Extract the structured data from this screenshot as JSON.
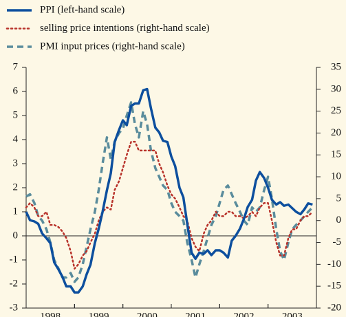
{
  "chart_data": {
    "type": "line",
    "x": [
      1998,
      1998.08,
      1998.17,
      1998.25,
      1998.33,
      1998.42,
      1998.5,
      1998.58,
      1998.67,
      1998.75,
      1998.83,
      1998.92,
      1999,
      1999.08,
      1999.17,
      1999.25,
      1999.33,
      1999.42,
      1999.5,
      1999.58,
      1999.67,
      1999.75,
      1999.83,
      1999.92,
      2000,
      2000.08,
      2000.17,
      2000.25,
      2000.33,
      2000.42,
      2000.5,
      2000.58,
      2000.67,
      2000.75,
      2000.83,
      2000.92,
      2001,
      2001.08,
      2001.17,
      2001.25,
      2001.33,
      2001.42,
      2001.5,
      2001.58,
      2001.67,
      2001.75,
      2001.83,
      2001.92,
      2002,
      2002.08,
      2002.17,
      2002.25,
      2002.33,
      2002.42,
      2002.5,
      2002.58,
      2002.67,
      2002.75,
      2002.83,
      2002.92,
      2003,
      2003.08,
      2003.17,
      2003.25,
      2003.33,
      2003.42,
      2003.5,
      2003.58,
      2003.67,
      2003.75,
      2003.83,
      2003.92
    ],
    "xlim": [
      1998,
      2004
    ],
    "xticks": [
      {
        "value": 1998.5,
        "label": "1998"
      },
      {
        "value": 1999.5,
        "label": "1999"
      },
      {
        "value": 2000.5,
        "label": "2000"
      },
      {
        "value": 2001.5,
        "label": "2001"
      },
      {
        "value": 2002.5,
        "label": "2002"
      },
      {
        "value": 2003.5,
        "label": "2003"
      }
    ],
    "ylim": [
      -3,
      7
    ],
    "yticks": [
      -3,
      -2,
      -1,
      0,
      1,
      2,
      3,
      4,
      5,
      6,
      7
    ],
    "y2lim": [
      -20,
      35
    ],
    "y2ticks": [
      -20,
      -15,
      -10,
      -5,
      0,
      5,
      10,
      15,
      20,
      25,
      30,
      35
    ],
    "series": [
      {
        "name": "PPI (left-hand scale)",
        "color": "#0d4f9e",
        "style": "solid",
        "values": [
          1.0,
          0.65,
          0.6,
          0.5,
          0.1,
          -0.1,
          -0.3,
          -1.1,
          -1.4,
          -1.7,
          -2.1,
          -2.1,
          -2.35,
          -2.35,
          -2.1,
          -1.6,
          -1.2,
          -0.3,
          0.3,
          1.0,
          1.9,
          2.6,
          3.9,
          4.4,
          4.8,
          4.6,
          5.4,
          5.5,
          5.5,
          6.05,
          6.1,
          5.3,
          4.5,
          4.3,
          3.95,
          3.9,
          3.3,
          2.9,
          2.0,
          1.6,
          0.5,
          -0.7,
          -0.95,
          -0.7,
          -0.75,
          -0.6,
          -0.8,
          -0.6,
          -0.6,
          -0.7,
          -0.9,
          -0.2,
          0.0,
          0.3,
          0.7,
          1.2,
          1.5,
          2.3,
          2.65,
          2.4,
          2.0,
          1.5,
          1.3,
          1.4,
          1.25,
          1.3,
          1.15,
          1.0,
          0.9,
          1.1,
          1.35,
          1.3
        ]
      },
      {
        "name": "selling price intentions (right-hand scale)",
        "color": "#b8322a",
        "style": "dotted",
        "axis": "y2",
        "values": [
          3,
          4,
          3,
          1,
          1,
          2,
          -1,
          -1,
          -1.5,
          -2.5,
          -4,
          -7,
          -11,
          -10,
          -8,
          -7,
          -5,
          -3,
          0,
          2,
          3,
          2.5,
          7,
          9,
          12,
          15,
          18,
          18,
          16,
          16,
          16,
          16,
          16,
          13,
          11,
          8,
          6,
          5,
          3,
          1,
          0,
          -4,
          -6,
          -7,
          -3,
          -1,
          0,
          2,
          1,
          1,
          2,
          2,
          1,
          1,
          0.5,
          1,
          2,
          1,
          3,
          4,
          4,
          0,
          -5,
          -8,
          -8,
          -4,
          -2,
          -2,
          0,
          1,
          1,
          2
        ]
      },
      {
        "name": "PMI input prices (right-hand scale)",
        "color": "#5a8c9c",
        "style": "dashed",
        "axis": "y2",
        "values": [
          5.5,
          6,
          4,
          1,
          0,
          -2,
          -5,
          -9,
          -11,
          -13,
          -13,
          -12,
          -14,
          -13,
          -10,
          -6,
          -2,
          2,
          7,
          13,
          19,
          14,
          18,
          20,
          21,
          24,
          27,
          22,
          19,
          25,
          22,
          16,
          12,
          10,
          8,
          7,
          4,
          2,
          1,
          0,
          -5,
          -9,
          -13,
          -10,
          -7,
          -4,
          -1,
          1,
          4,
          7,
          8,
          6,
          4,
          2,
          0,
          -1,
          3,
          2,
          3,
          7,
          10,
          5,
          -2,
          -7,
          -9,
          -5,
          -2,
          -1,
          0,
          1,
          2,
          3
        ]
      }
    ]
  }
}
